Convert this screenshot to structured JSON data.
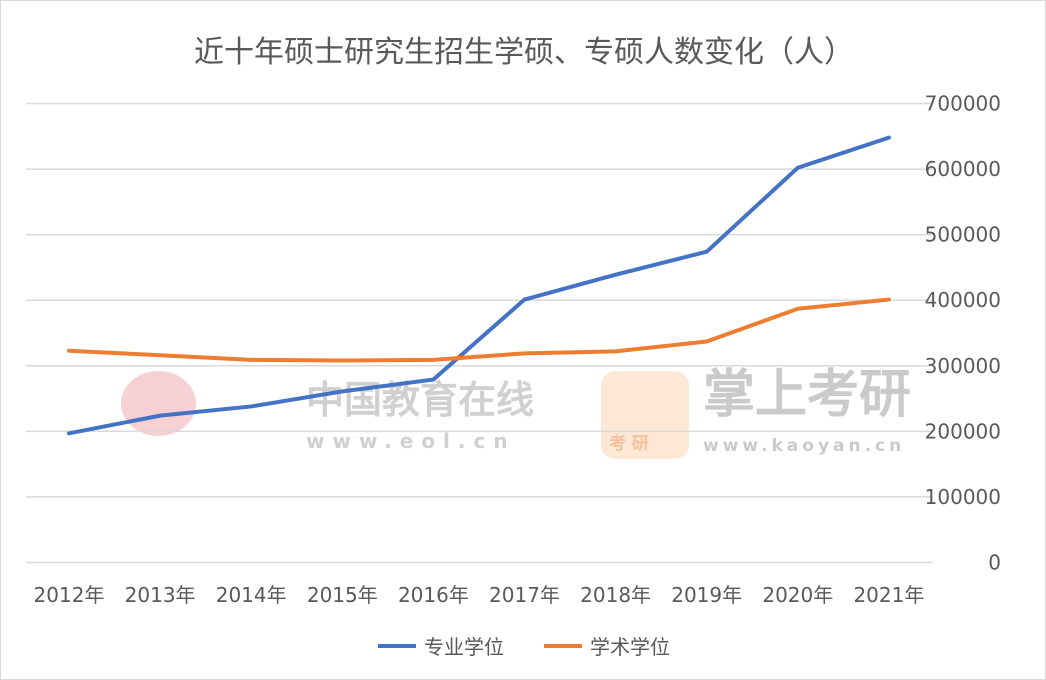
{
  "chart_data": {
    "type": "line",
    "title": "近十年硕士研究生招生学硕、专硕人数变化（人）",
    "categories": [
      "2012年",
      "2013年",
      "2014年",
      "2015年",
      "2016年",
      "2017年",
      "2018年",
      "2019年",
      "2020年",
      "2021年"
    ],
    "series": [
      {
        "name": "专业学位",
        "color": "#4472C4",
        "values": [
          197000,
          224000,
          238000,
          261000,
          279000,
          401000,
          439000,
          474000,
          602000,
          648000
        ]
      },
      {
        "name": "学术学位",
        "color": "#ED7D31",
        "values": [
          323000,
          316000,
          309000,
          308000,
          309000,
          319000,
          322000,
          337000,
          387000,
          401000
        ]
      }
    ],
    "ylim": [
      0,
      700000
    ],
    "yticks": [
      "0",
      "100000",
      "200000",
      "300000",
      "400000",
      "500000",
      "600000",
      "700000"
    ],
    "grid": true,
    "y_axis_side": "right",
    "legend": "bottom"
  },
  "watermarks": {
    "eol_name": "中国教育在线",
    "eol_url": "www.eol.cn",
    "kaoyan_name": "掌上考研",
    "kaoyan_url": "www.kaoyan.cn",
    "kaoyan_badge": "考 研"
  }
}
